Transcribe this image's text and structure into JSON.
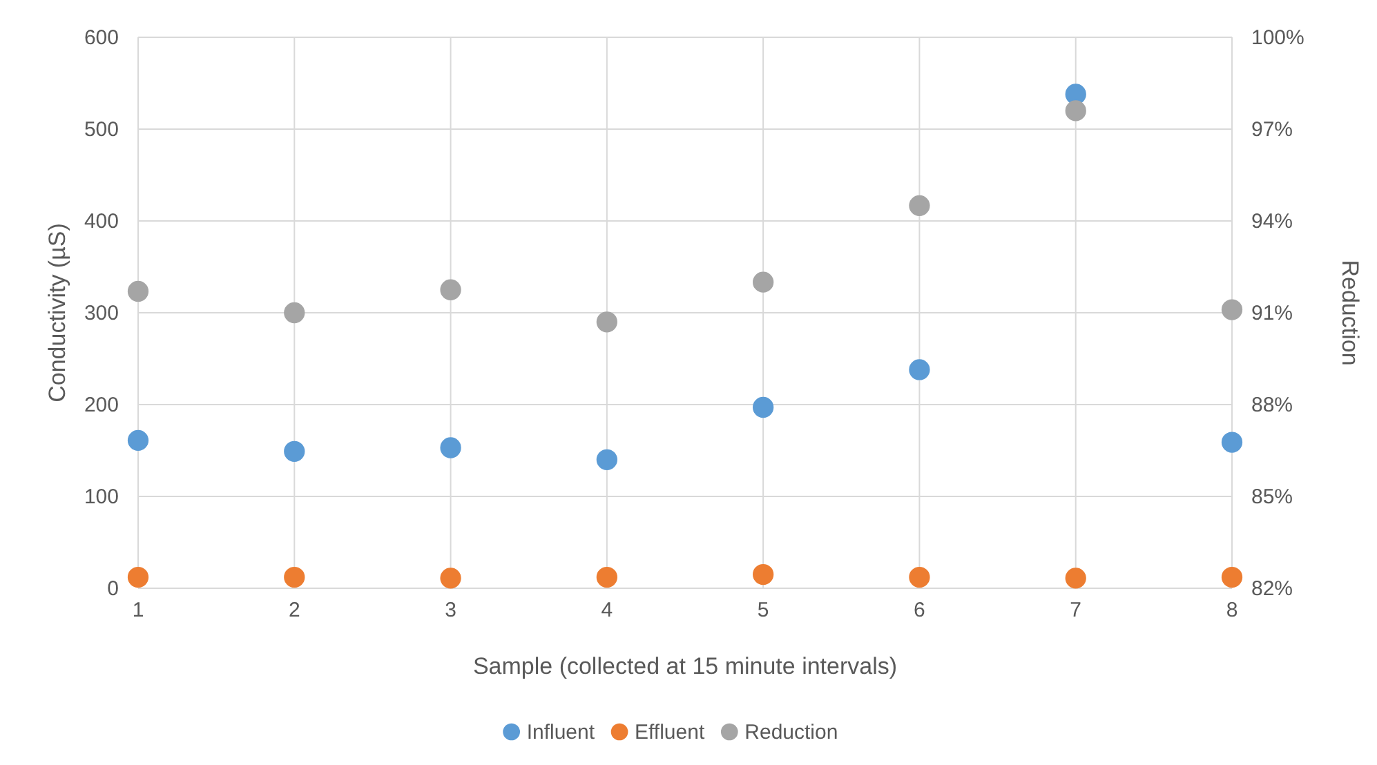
{
  "chart_data": {
    "type": "scatter",
    "xlabel": "Sample (collected at 15 minute intervals)",
    "ylabel": "Conductivity (µS)",
    "y2label": "Reduction",
    "categories": [
      "1",
      "2",
      "3",
      "4",
      "5",
      "6",
      "7",
      "8"
    ],
    "series": [
      {
        "name": "Influent",
        "color": "#5b9bd5",
        "values": [
          161,
          149,
          153,
          140,
          197,
          238,
          538,
          159
        ]
      },
      {
        "name": "Effluent",
        "color": "#ed7d31",
        "values": [
          12,
          12,
          11,
          12,
          15,
          12,
          11,
          12
        ]
      },
      {
        "name": "Reduction",
        "color": "#a5a5a5",
        "axis": "y2",
        "values": [
          91.7,
          91.0,
          91.75,
          90.7,
          92.0,
          94.5,
          97.6,
          91.1
        ]
      }
    ],
    "ylim": [
      0,
      600
    ],
    "yticks": [
      0,
      100,
      200,
      300,
      400,
      500,
      600
    ],
    "y2lim": [
      82,
      100
    ],
    "y2ticks": [
      {
        "value": 82,
        "label": "82%"
      },
      {
        "value": 85,
        "label": "85%"
      },
      {
        "value": 88,
        "label": "88%"
      },
      {
        "value": 91,
        "label": "91%"
      },
      {
        "value": 94,
        "label": "94%"
      },
      {
        "value": 97,
        "label": "97%"
      },
      {
        "value": 100,
        "label": "100%"
      }
    ],
    "grid": true,
    "legend": "bottom",
    "marker": "circle"
  }
}
